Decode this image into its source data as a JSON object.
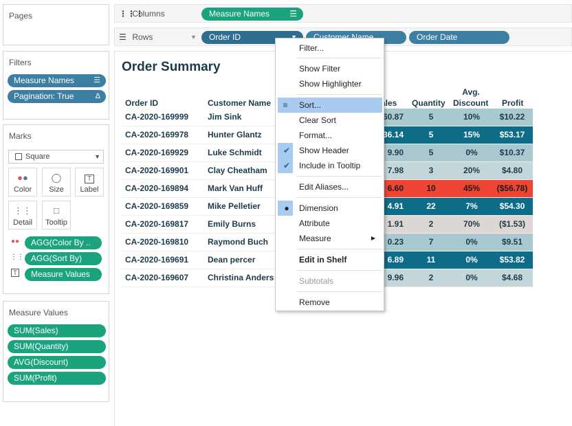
{
  "pages": {
    "title": "Pages"
  },
  "filters": {
    "title": "Filters",
    "pills": [
      {
        "label": "Measure Names",
        "icon": "filter-lines-icon"
      },
      {
        "label": "Pagination: True",
        "icon": "delta-icon"
      }
    ]
  },
  "marks": {
    "title": "Marks",
    "type": "Square",
    "buttons": [
      "Color",
      "Size",
      "Label",
      "Detail",
      "Tooltip"
    ],
    "fields": [
      {
        "label": "AGG(Color By ..",
        "icon": "color-dots-icon"
      },
      {
        "label": "AGG(Sort By)",
        "icon": "detail-dots-icon"
      },
      {
        "label": "Measure Values",
        "icon": "label-t-icon"
      }
    ]
  },
  "measure_values": {
    "title": "Measure Values",
    "pills": [
      "SUM(Sales)",
      "SUM(Quantity)",
      "AVG(Discount)",
      "SUM(Profit)"
    ]
  },
  "columns": {
    "label": "Columns",
    "pills": [
      "Measure Names"
    ]
  },
  "rows": {
    "label": "Rows",
    "pills": [
      "Order ID",
      "Customer Name",
      "Order Date"
    ]
  },
  "view": {
    "title": "Order Summary",
    "headers": {
      "order_id": "Order ID",
      "customer": "Customer Name",
      "sales": "ales",
      "quantity": "Quantity",
      "discount_1": "Avg.",
      "discount_2": "Discount",
      "profit": "Profit"
    },
    "rows": [
      {
        "id": "CA-2020-169999",
        "name": "Jim Sink",
        "sales": "60.87",
        "qty": "5",
        "disc": "10%",
        "profit": "$10.22",
        "bg": "#a9c9d0",
        "fg": "#1c3a4a"
      },
      {
        "id": "CA-2020-169978",
        "name": "Hunter Glantz",
        "sales": "36.14",
        "qty": "5",
        "disc": "15%",
        "profit": "$53.17",
        "bg": "#0d6d88",
        "fg": "#ffffff"
      },
      {
        "id": "CA-2020-169929",
        "name": "Luke Schmidt",
        "sales": "9.90",
        "qty": "5",
        "disc": "0%",
        "profit": "$10.37",
        "bg": "#a9c9d0",
        "fg": "#1c3a4a"
      },
      {
        "id": "CA-2020-169901",
        "name": "Clay Cheatham",
        "sales": "7.98",
        "qty": "3",
        "disc": "20%",
        "profit": "$4.80",
        "bg": "#c3d7da",
        "fg": "#1c3a4a"
      },
      {
        "id": "CA-2020-169894",
        "name": "Mark Van Huff",
        "sales": "6.60",
        "qty": "10",
        "disc": "45%",
        "profit": "($56.78)",
        "bg": "#ee4433",
        "fg": "#1c1c1c"
      },
      {
        "id": "CA-2020-169859",
        "name": "Mike Pelletier",
        "sales": "4.91",
        "qty": "22",
        "disc": "7%",
        "profit": "$54.30",
        "bg": "#0d6d88",
        "fg": "#ffffff"
      },
      {
        "id": "CA-2020-169817",
        "name": "Emily Burns",
        "sales": "1.91",
        "qty": "2",
        "disc": "70%",
        "profit": "($1.53)",
        "bg": "#dcd6d4",
        "fg": "#1c3a4a"
      },
      {
        "id": "CA-2020-169810",
        "name": "Raymond Buch",
        "sales": "0.23",
        "qty": "7",
        "disc": "0%",
        "profit": "$9.51",
        "bg": "#a9c9d0",
        "fg": "#1c3a4a"
      },
      {
        "id": "CA-2020-169691",
        "name": "Dean percer",
        "sales": "6.89",
        "qty": "11",
        "disc": "0%",
        "profit": "$53.82",
        "bg": "#0d6d88",
        "fg": "#ffffff"
      },
      {
        "id": "CA-2020-169607",
        "name": "Christina Anders",
        "sales": "9.96",
        "qty": "2",
        "disc": "0%",
        "profit": "$4.68",
        "bg": "#c3d7da",
        "fg": "#1c3a4a"
      }
    ]
  },
  "context_menu": {
    "items": {
      "filter": "Filter...",
      "show_filter": "Show Filter",
      "show_highlighter": "Show Highlighter",
      "sort": "Sort...",
      "clear_sort": "Clear Sort",
      "format": "Format...",
      "show_header": "Show Header",
      "include_tooltip": "Include in Tooltip",
      "edit_aliases": "Edit Aliases...",
      "dimension": "Dimension",
      "attribute": "Attribute",
      "measure": "Measure",
      "edit_in_shelf": "Edit in Shelf",
      "subtotals": "Subtotals",
      "remove": "Remove"
    }
  }
}
